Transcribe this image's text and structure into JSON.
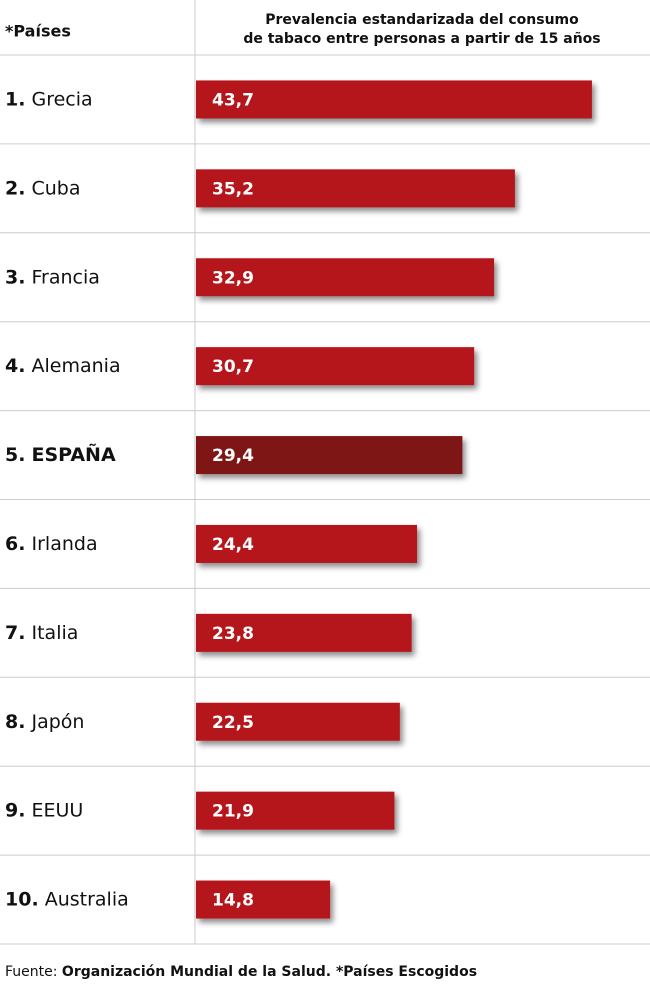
{
  "chart_data": {
    "type": "bar",
    "header_label": "*Países",
    "title": [
      "Prevalencia estandarizada del consumo",
      "de tabaco entre personas a partir de 15 años"
    ],
    "ranks": [
      "1.",
      "2.",
      "3.",
      "4.",
      "5.",
      "6.",
      "7.",
      "8.",
      "9.",
      "10."
    ],
    "categories": [
      "Grecia",
      "Cuba",
      "Francia",
      "Alemania",
      "ESPAÑA",
      "Irlanda",
      "Italia",
      "Japón",
      "EEUU",
      "Australia"
    ],
    "values": [
      43.7,
      35.2,
      32.9,
      30.7,
      29.4,
      24.4,
      23.8,
      22.5,
      21.9,
      14.8
    ],
    "value_labels": [
      "43,7",
      "35,2",
      "32,9",
      "30,7",
      "29,4",
      "24,4",
      "23,8",
      "22,5",
      "21,9",
      "14,8"
    ],
    "colors": [
      "#b5121b",
      "#b5121b",
      "#b5121b",
      "#b5121b",
      "#7e1416",
      "#b5121b",
      "#b5121b",
      "#b5121b",
      "#b5121b",
      "#b5121b"
    ],
    "bold_categories": [
      "ESPAÑA"
    ],
    "source_label": "Fuente:",
    "source": "Organización Mundial de la Salud. *Países Escogidos"
  }
}
